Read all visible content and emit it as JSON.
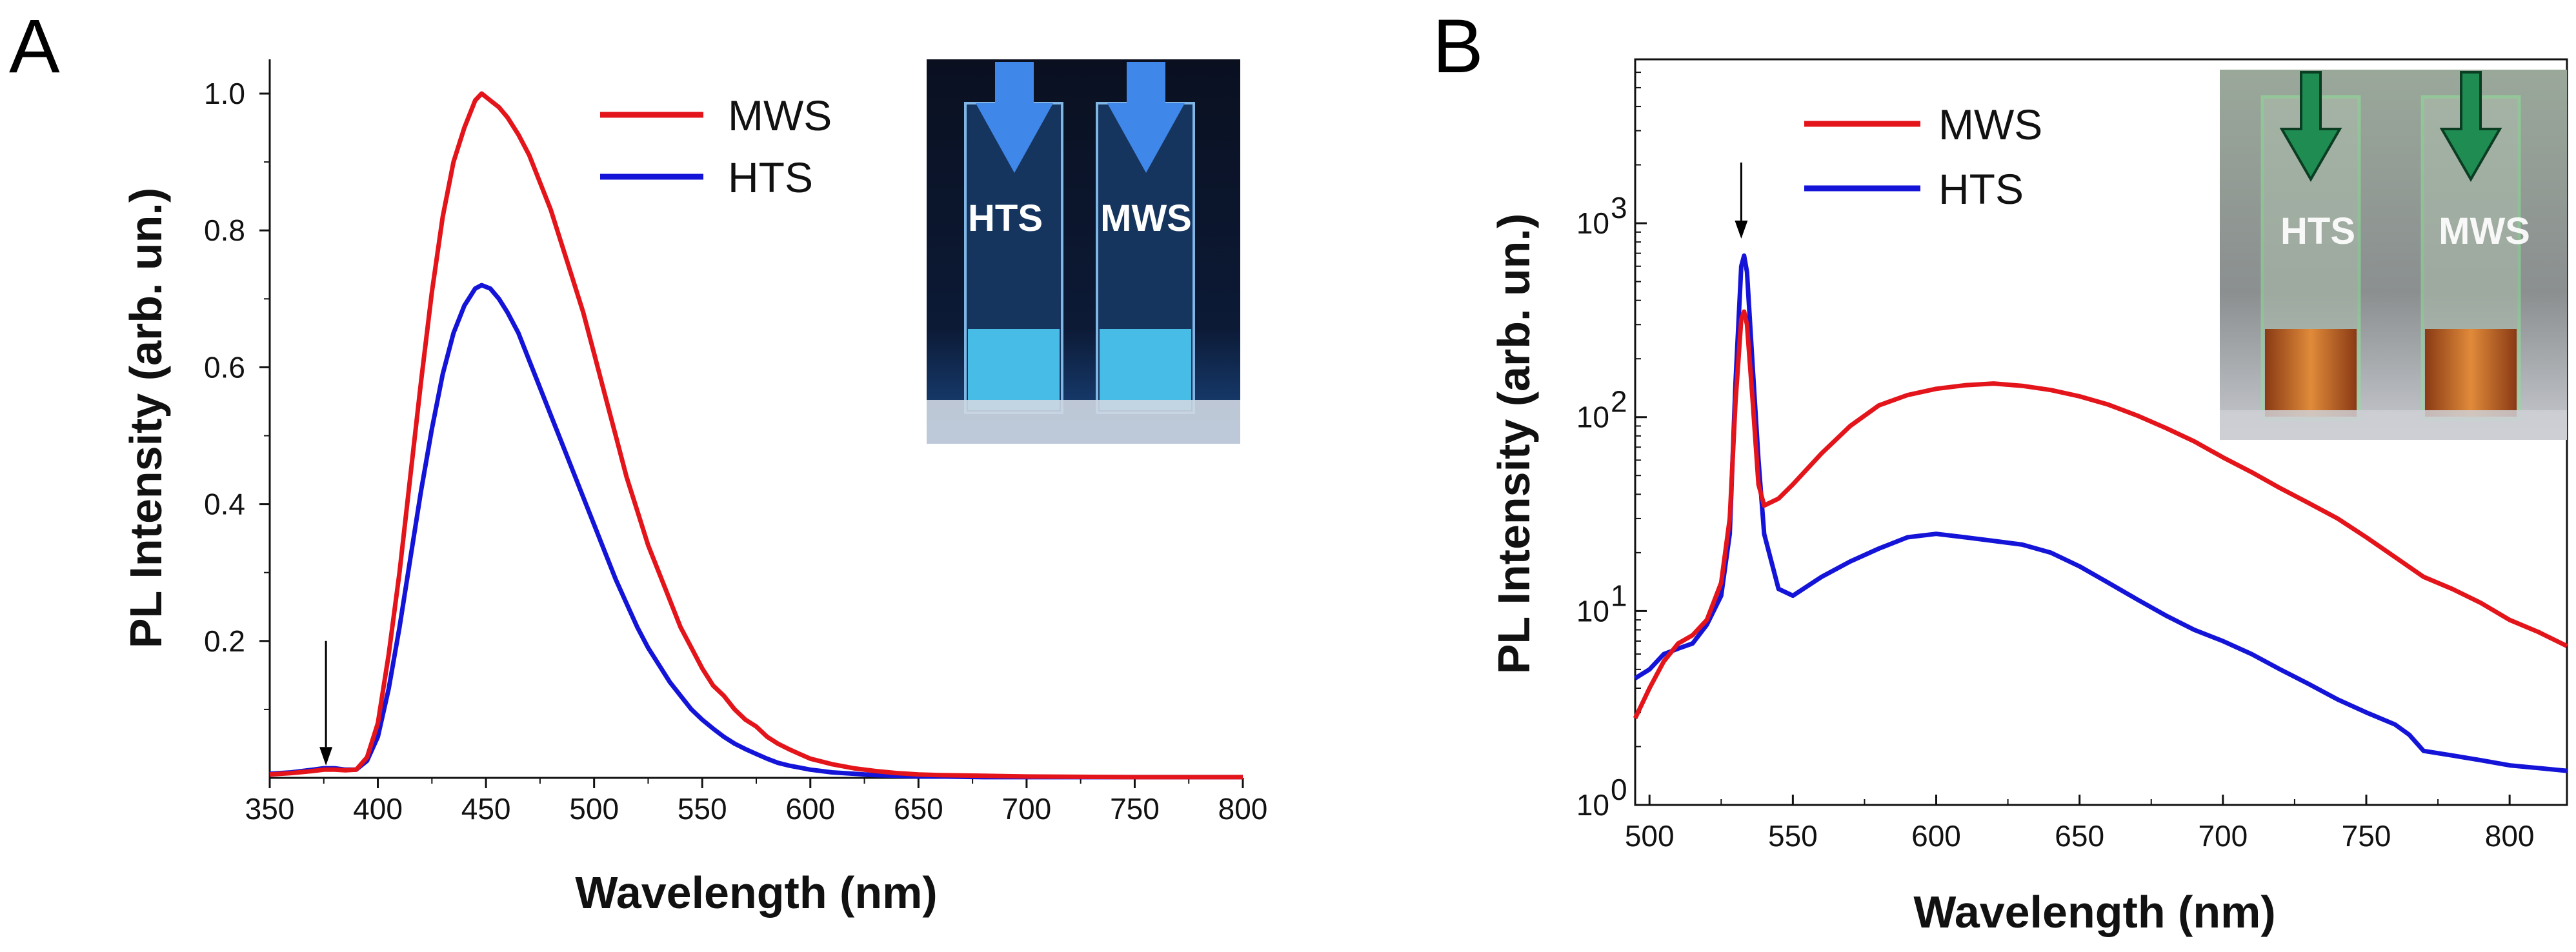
{
  "chart_data": [
    {
      "panel": "A",
      "type": "line",
      "xlabel": "Wavelength (nm)",
      "ylabel": "PL Intensity (arb. un.)",
      "xlim": [
        350,
        800
      ],
      "ylim": [
        0,
        1.05
      ],
      "x_ticks": [
        "350",
        "400",
        "450",
        "500",
        "550",
        "600",
        "650",
        "700",
        "750",
        "800"
      ],
      "y_ticks": [
        "0.2",
        "0.4",
        "0.6",
        "0.8",
        "1.0"
      ],
      "legend": [
        "MWS",
        "HTS"
      ],
      "legend_position": "top-center",
      "arrow_at_x": 376,
      "series": [
        {
          "name": "MWS",
          "color": "#e4141b",
          "x": [
            350,
            360,
            370,
            375,
            380,
            385,
            390,
            395,
            400,
            405,
            410,
            415,
            420,
            425,
            430,
            435,
            440,
            445,
            448,
            452,
            456,
            460,
            465,
            470,
            475,
            480,
            485,
            490,
            495,
            500,
            505,
            510,
            515,
            520,
            525,
            530,
            535,
            540,
            545,
            550,
            555,
            560,
            565,
            570,
            575,
            580,
            585,
            590,
            595,
            600,
            610,
            620,
            630,
            640,
            650,
            660,
            680,
            700,
            750,
            800
          ],
          "y": [
            0.005,
            0.007,
            0.01,
            0.012,
            0.012,
            0.011,
            0.012,
            0.03,
            0.08,
            0.18,
            0.3,
            0.44,
            0.58,
            0.71,
            0.82,
            0.9,
            0.95,
            0.99,
            1.0,
            0.99,
            0.98,
            0.965,
            0.94,
            0.91,
            0.87,
            0.83,
            0.78,
            0.73,
            0.68,
            0.62,
            0.56,
            0.5,
            0.44,
            0.39,
            0.34,
            0.3,
            0.26,
            0.22,
            0.19,
            0.16,
            0.135,
            0.12,
            0.1,
            0.085,
            0.075,
            0.06,
            0.05,
            0.042,
            0.035,
            0.028,
            0.02,
            0.014,
            0.01,
            0.007,
            0.005,
            0.004,
            0.003,
            0.002,
            0.001,
            0.001
          ]
        },
        {
          "name": "HTS",
          "color": "#1414d9",
          "x": [
            350,
            360,
            370,
            375,
            380,
            385,
            390,
            395,
            400,
            405,
            410,
            415,
            420,
            425,
            430,
            435,
            440,
            445,
            448,
            452,
            456,
            460,
            465,
            470,
            475,
            480,
            485,
            490,
            495,
            500,
            505,
            510,
            515,
            520,
            525,
            530,
            535,
            540,
            545,
            550,
            555,
            560,
            565,
            570,
            575,
            580,
            585,
            590,
            595,
            600,
            610,
            620,
            630,
            640,
            650,
            660,
            680,
            700,
            750,
            800
          ],
          "y": [
            0.006,
            0.008,
            0.012,
            0.014,
            0.014,
            0.012,
            0.012,
            0.025,
            0.06,
            0.13,
            0.22,
            0.32,
            0.42,
            0.51,
            0.59,
            0.65,
            0.69,
            0.715,
            0.72,
            0.715,
            0.7,
            0.68,
            0.65,
            0.61,
            0.57,
            0.53,
            0.49,
            0.45,
            0.41,
            0.37,
            0.33,
            0.29,
            0.255,
            0.22,
            0.19,
            0.165,
            0.14,
            0.12,
            0.1,
            0.085,
            0.072,
            0.06,
            0.05,
            0.042,
            0.035,
            0.028,
            0.022,
            0.018,
            0.015,
            0.012,
            0.008,
            0.006,
            0.004,
            0.003,
            0.002,
            0.002,
            0.001,
            0.001,
            0.001,
            0.001
          ]
        }
      ],
      "inset": {
        "labels": [
          "HTS",
          "MWS"
        ],
        "description": "two cuvettes under UV, blue emission"
      }
    },
    {
      "panel": "B",
      "type": "line",
      "y_scale": "log",
      "xlabel": "Wavelength (nm)",
      "ylabel": "PL Intensity (arb. un.)",
      "xlim": [
        495,
        820
      ],
      "ylim": [
        1,
        7000
      ],
      "x_ticks": [
        "500",
        "550",
        "600",
        "650",
        "700",
        "750",
        "800"
      ],
      "y_ticks": [
        {
          "base": "10",
          "exp": "0",
          "value": 1
        },
        {
          "base": "10",
          "exp": "1",
          "value": 10
        },
        {
          "base": "10",
          "exp": "2",
          "value": 100
        },
        {
          "base": "10",
          "exp": "3",
          "value": 1000
        }
      ],
      "legend": [
        "MWS",
        "HTS"
      ],
      "legend_position": "top-center",
      "arrow_at_x": 532,
      "series": [
        {
          "name": "MWS",
          "color": "#e4141b",
          "x": [
            495,
            500,
            505,
            510,
            515,
            520,
            525,
            528,
            530,
            532,
            533,
            534,
            536,
            538,
            540,
            545,
            550,
            560,
            570,
            580,
            590,
            600,
            610,
            620,
            630,
            640,
            650,
            660,
            670,
            680,
            690,
            700,
            710,
            720,
            730,
            740,
            750,
            760,
            770,
            780,
            790,
            800,
            810,
            820
          ],
          "y": [
            2.8,
            4.0,
            5.5,
            6.8,
            7.5,
            9.0,
            14,
            30,
            120,
            320,
            350,
            300,
            120,
            45,
            35,
            38,
            45,
            65,
            90,
            115,
            130,
            140,
            146,
            149,
            145,
            138,
            128,
            116,
            102,
            88,
            75,
            62,
            52,
            43,
            36,
            30,
            24,
            19,
            15,
            13,
            11,
            9,
            7.8,
            6.6
          ]
        },
        {
          "name": "HTS",
          "color": "#1414d9",
          "x": [
            495,
            500,
            505,
            510,
            515,
            520,
            525,
            528,
            530,
            532,
            533,
            534,
            536,
            538,
            540,
            545,
            550,
            560,
            570,
            580,
            590,
            600,
            610,
            620,
            630,
            640,
            650,
            660,
            670,
            680,
            690,
            700,
            710,
            720,
            730,
            740,
            750,
            760,
            765,
            770,
            780,
            790,
            800,
            810,
            820
          ],
          "y": [
            4.5,
            5.0,
            6.0,
            6.4,
            6.8,
            8.5,
            12,
            25,
            150,
            600,
            680,
            560,
            180,
            60,
            25,
            13,
            12,
            15,
            18,
            21,
            24,
            25,
            24,
            23,
            22,
            20,
            17,
            14,
            11.5,
            9.5,
            8,
            7,
            6,
            5,
            4.2,
            3.5,
            3,
            2.6,
            2.3,
            1.9,
            1.8,
            1.7,
            1.6,
            1.55,
            1.5
          ]
        }
      ],
      "inset": {
        "labels": [
          "HTS",
          "MWS"
        ],
        "description": "two cuvettes with orange liquid, green arrows"
      }
    }
  ],
  "panels": {
    "a": {
      "letter": "A"
    },
    "b": {
      "letter": "B"
    }
  },
  "colors": {
    "mws": "#e4141b",
    "hts": "#1414d9"
  }
}
